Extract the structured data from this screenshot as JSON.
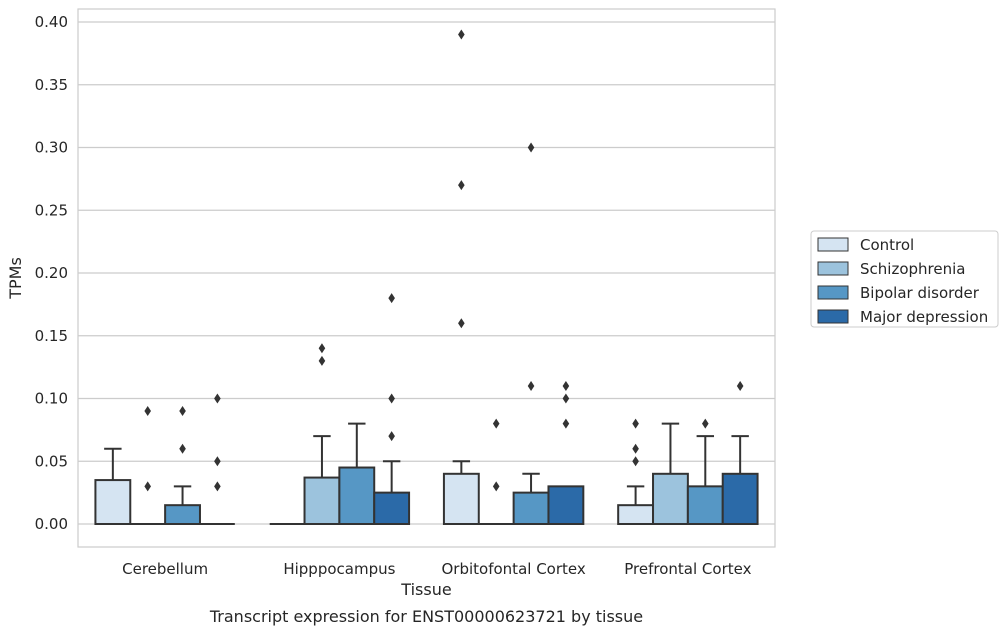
{
  "chart_data": {
    "type": "box",
    "caption": "Transcript expression for ENST00000623721 by tissue",
    "xlabel": "Tissue",
    "ylabel": "TPMs",
    "ylim": [
      -0.019,
      0.41
    ],
    "yticks": [
      "0.00",
      "0.05",
      "0.10",
      "0.15",
      "0.20",
      "0.25",
      "0.30",
      "0.35",
      "0.40"
    ],
    "grid": true,
    "legend_position": "right",
    "categories": [
      "Cerebellum",
      "Hipppocampus",
      "Orbitofontal Cortex",
      "Prefrontal Cortex"
    ],
    "series": [
      {
        "name": "Control",
        "color": "#d5e4f2",
        "boxes": [
          {
            "q1": 0.0,
            "median": 0.0,
            "q3": 0.035,
            "whisker_low": 0.0,
            "whisker_high": 0.06,
            "outliers": []
          },
          {
            "q1": 0.0,
            "median": 0.0,
            "q3": 0.0,
            "whisker_low": 0.0,
            "whisker_high": 0.0,
            "outliers": []
          },
          {
            "q1": 0.0,
            "median": 0.0,
            "q3": 0.04,
            "whisker_low": 0.0,
            "whisker_high": 0.05,
            "outliers": [
              0.16,
              0.27,
              0.39
            ]
          },
          {
            "q1": 0.0,
            "median": 0.0,
            "q3": 0.015,
            "whisker_low": 0.0,
            "whisker_high": 0.03,
            "outliers": [
              0.05,
              0.06,
              0.08
            ]
          }
        ]
      },
      {
        "name": "Schizophrenia",
        "color": "#9cc3dd",
        "boxes": [
          {
            "q1": 0.0,
            "median": 0.0,
            "q3": 0.0,
            "whisker_low": 0.0,
            "whisker_high": 0.0,
            "outliers": [
              0.03,
              0.09
            ]
          },
          {
            "q1": 0.0,
            "median": 0.0,
            "q3": 0.037,
            "whisker_low": 0.0,
            "whisker_high": 0.07,
            "outliers": [
              0.13,
              0.14
            ]
          },
          {
            "q1": 0.0,
            "median": 0.0,
            "q3": 0.0,
            "whisker_low": 0.0,
            "whisker_high": 0.0,
            "outliers": [
              0.03,
              0.08
            ]
          },
          {
            "q1": 0.0,
            "median": 0.0,
            "q3": 0.04,
            "whisker_low": 0.0,
            "whisker_high": 0.08,
            "outliers": []
          }
        ]
      },
      {
        "name": "Bipolar disorder",
        "color": "#5697c5",
        "boxes": [
          {
            "q1": 0.0,
            "median": 0.0,
            "q3": 0.015,
            "whisker_low": 0.0,
            "whisker_high": 0.03,
            "outliers": [
              0.06,
              0.09
            ]
          },
          {
            "q1": 0.0,
            "median": 0.0,
            "q3": 0.045,
            "whisker_low": 0.0,
            "whisker_high": 0.08,
            "outliers": []
          },
          {
            "q1": 0.0,
            "median": 0.0,
            "q3": 0.025,
            "whisker_low": 0.0,
            "whisker_high": 0.04,
            "outliers": [
              0.11,
              0.3
            ]
          },
          {
            "q1": 0.0,
            "median": 0.0,
            "q3": 0.03,
            "whisker_low": 0.0,
            "whisker_high": 0.07,
            "outliers": [
              0.08
            ]
          }
        ]
      },
      {
        "name": "Major depression",
        "color": "#2b6aa8",
        "boxes": [
          {
            "q1": 0.0,
            "median": 0.0,
            "q3": 0.0,
            "whisker_low": 0.0,
            "whisker_high": 0.0,
            "outliers": [
              0.03,
              0.05,
              0.1
            ]
          },
          {
            "q1": 0.0,
            "median": 0.0,
            "q3": 0.025,
            "whisker_low": 0.0,
            "whisker_high": 0.05,
            "outliers": [
              0.07,
              0.1,
              0.18
            ]
          },
          {
            "q1": 0.0,
            "median": 0.0,
            "q3": 0.03,
            "whisker_low": 0.0,
            "whisker_high": 0.03,
            "outliers": [
              0.08,
              0.1,
              0.11
            ]
          },
          {
            "q1": 0.0,
            "median": 0.0,
            "q3": 0.04,
            "whisker_low": 0.0,
            "whisker_high": 0.07,
            "outliers": [
              0.11
            ]
          }
        ]
      }
    ]
  }
}
